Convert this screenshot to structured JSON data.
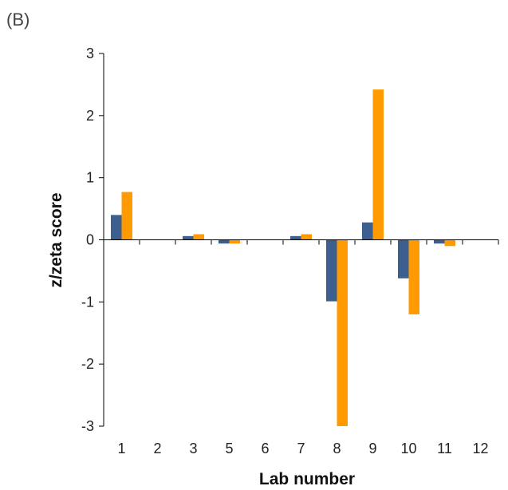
{
  "panel_label": "(B)",
  "colors": {
    "series_blue": "#3C5F8F",
    "series_orange": "#FF9A00",
    "axis": "#000000"
  },
  "chart_data": {
    "type": "bar",
    "xlabel": "Lab number",
    "ylabel": "z/zeta score",
    "categories": [
      "1",
      "2",
      "3",
      "5",
      "6",
      "7",
      "8",
      "9",
      "10",
      "11",
      "12"
    ],
    "ylim": [
      -3,
      3
    ],
    "yticks": [
      3,
      2,
      1,
      0,
      -1,
      -2,
      -3
    ],
    "grid": false,
    "series": [
      {
        "values": [
          0.4,
          0,
          0.06,
          -0.06,
          0,
          0.06,
          -0.99,
          0.28,
          -0.62,
          -0.06,
          0
        ]
      },
      {
        "values": [
          0.77,
          0,
          0.09,
          -0.06,
          0,
          0.09,
          -3.0,
          2.42,
          -1.2,
          -0.1,
          0
        ]
      }
    ]
  }
}
